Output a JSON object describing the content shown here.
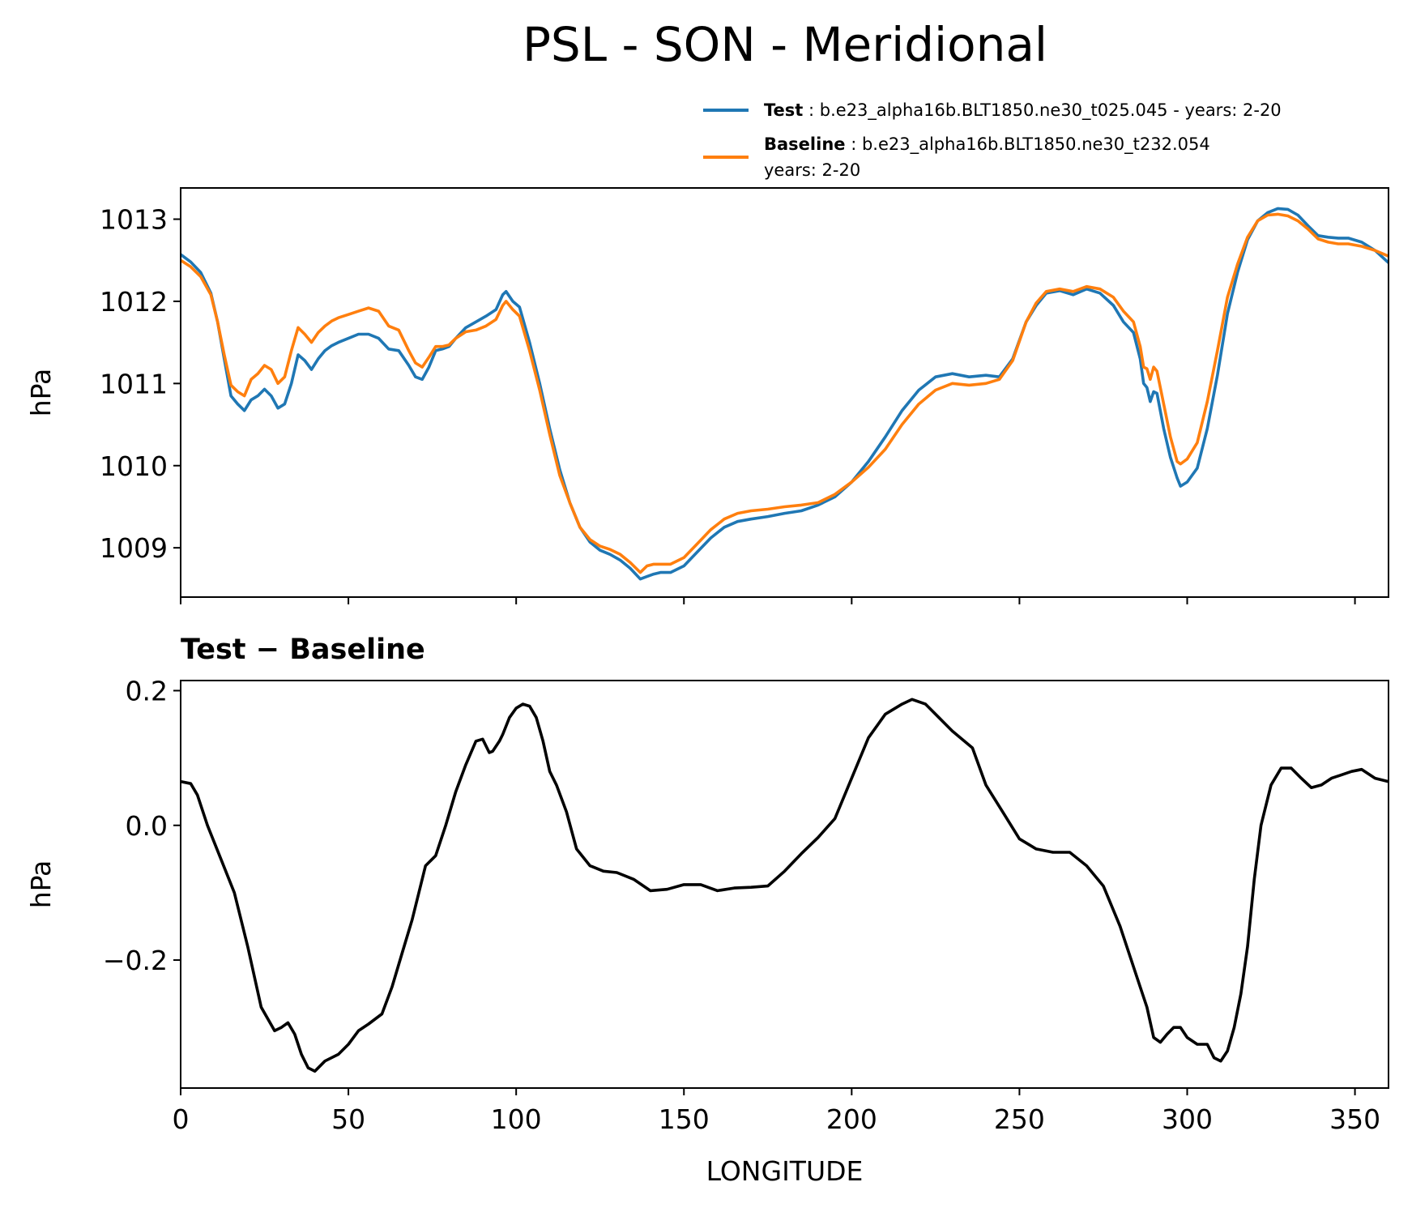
{
  "figure_title": "PSL - SON - Meridional",
  "chart_data": [
    {
      "type": "line",
      "ylabel": "hPa",
      "xlabel": "",
      "xlim": [
        0,
        360
      ],
      "ylim": [
        1008.4,
        1013.38
      ],
      "yticks": [
        1009,
        1010,
        1011,
        1012,
        1013
      ],
      "ytick_labels": [
        "1009",
        "1010",
        "1011",
        "1012",
        "1013"
      ],
      "legend": {
        "position": "upper-right-outside",
        "entries": [
          {
            "name": "Test",
            "sep": " : ",
            "text": "b.e23_alpha16b.BLT1850.ne30_t025.045 - years: 2-20",
            "text2": ""
          },
          {
            "name": "Baseline",
            "sep": " : ",
            "text": "b.e23_alpha16b.BLT1850.ne30_t232.054",
            "text2": "years: 2-20"
          }
        ]
      },
      "series": [
        {
          "name": "Test",
          "color": "#1f77b4",
          "x": [
            0,
            3,
            6,
            9,
            11,
            13,
            15,
            17,
            19,
            21,
            23,
            25,
            27,
            29,
            31,
            33,
            35,
            37,
            39,
            41,
            43,
            45,
            47,
            50,
            53,
            56,
            59,
            62,
            65,
            68,
            70,
            72,
            74,
            76,
            78,
            80,
            82,
            85,
            88,
            91,
            94,
            96,
            97,
            99,
            101,
            104,
            107,
            110,
            113,
            116,
            119,
            122,
            125,
            128,
            131,
            134,
            137,
            139,
            141,
            143,
            146,
            150,
            154,
            158,
            162,
            166,
            170,
            175,
            180,
            185,
            190,
            195,
            200,
            205,
            210,
            215,
            220,
            225,
            230,
            235,
            240,
            244,
            248,
            252,
            255,
            258,
            262,
            266,
            270,
            274,
            278,
            281,
            284,
            286,
            287,
            288,
            289,
            290,
            291,
            293,
            295,
            297,
            298,
            300,
            303,
            306,
            309,
            312,
            315,
            318,
            321,
            324,
            327,
            330,
            333,
            336,
            339,
            342,
            345,
            348,
            352,
            356,
            360
          ],
          "values": [
            1012.57,
            1012.48,
            1012.35,
            1012.1,
            1011.75,
            1011.3,
            1010.85,
            1010.75,
            1010.67,
            1010.8,
            1010.85,
            1010.93,
            1010.85,
            1010.7,
            1010.75,
            1011.0,
            1011.35,
            1011.28,
            1011.17,
            1011.3,
            1011.4,
            1011.46,
            1011.5,
            1011.55,
            1011.6,
            1011.6,
            1011.55,
            1011.42,
            1011.4,
            1011.22,
            1011.08,
            1011.05,
            1011.2,
            1011.4,
            1011.42,
            1011.45,
            1011.55,
            1011.68,
            1011.75,
            1011.82,
            1011.9,
            1012.08,
            1012.12,
            1012.0,
            1011.93,
            1011.5,
            1011.0,
            1010.45,
            1009.95,
            1009.55,
            1009.25,
            1009.07,
            1008.97,
            1008.92,
            1008.85,
            1008.75,
            1008.62,
            1008.65,
            1008.68,
            1008.7,
            1008.7,
            1008.78,
            1008.95,
            1009.12,
            1009.25,
            1009.32,
            1009.35,
            1009.38,
            1009.42,
            1009.45,
            1009.52,
            1009.62,
            1009.8,
            1010.05,
            1010.35,
            1010.67,
            1010.92,
            1011.08,
            1011.12,
            1011.08,
            1011.1,
            1011.08,
            1011.3,
            1011.75,
            1011.95,
            1012.1,
            1012.13,
            1012.08,
            1012.15,
            1012.1,
            1011.95,
            1011.75,
            1011.62,
            1011.3,
            1011.0,
            1010.95,
            1010.78,
            1010.9,
            1010.88,
            1010.45,
            1010.1,
            1009.85,
            1009.75,
            1009.8,
            1009.97,
            1010.45,
            1011.1,
            1011.85,
            1012.35,
            1012.75,
            1012.98,
            1013.08,
            1013.13,
            1013.12,
            1013.05,
            1012.92,
            1012.8,
            1012.78,
            1012.77,
            1012.77,
            1012.72,
            1012.62,
            1012.47
          ]
        },
        {
          "name": "Baseline",
          "color": "#ff7f0e",
          "x": [
            0,
            3,
            6,
            9,
            11,
            13,
            15,
            17,
            19,
            21,
            23,
            25,
            27,
            29,
            31,
            33,
            35,
            37,
            39,
            41,
            43,
            45,
            47,
            50,
            53,
            56,
            59,
            62,
            65,
            68,
            70,
            72,
            74,
            76,
            78,
            80,
            82,
            85,
            88,
            91,
            94,
            96,
            97,
            99,
            101,
            104,
            107,
            110,
            113,
            116,
            119,
            122,
            125,
            128,
            131,
            134,
            137,
            139,
            141,
            143,
            146,
            150,
            154,
            158,
            162,
            166,
            170,
            175,
            180,
            185,
            190,
            195,
            200,
            205,
            210,
            215,
            220,
            225,
            230,
            235,
            240,
            244,
            248,
            252,
            255,
            258,
            262,
            266,
            270,
            274,
            278,
            281,
            284,
            286,
            287,
            288,
            289,
            290,
            291,
            293,
            295,
            297,
            298,
            300,
            303,
            306,
            309,
            312,
            315,
            318,
            321,
            324,
            327,
            330,
            333,
            336,
            339,
            342,
            345,
            348,
            352,
            356,
            360
          ],
          "values": [
            1012.5,
            1012.42,
            1012.3,
            1012.08,
            1011.75,
            1011.35,
            1010.98,
            1010.9,
            1010.85,
            1011.05,
            1011.12,
            1011.22,
            1011.17,
            1011.0,
            1011.08,
            1011.4,
            1011.68,
            1011.6,
            1011.5,
            1011.62,
            1011.7,
            1011.76,
            1011.8,
            1011.84,
            1011.88,
            1011.92,
            1011.88,
            1011.7,
            1011.65,
            1011.4,
            1011.25,
            1011.2,
            1011.32,
            1011.45,
            1011.45,
            1011.47,
            1011.55,
            1011.63,
            1011.65,
            1011.7,
            1011.78,
            1011.95,
            1012.0,
            1011.9,
            1011.82,
            1011.4,
            1010.92,
            1010.38,
            1009.88,
            1009.55,
            1009.25,
            1009.1,
            1009.02,
            1008.98,
            1008.92,
            1008.82,
            1008.7,
            1008.78,
            1008.8,
            1008.8,
            1008.8,
            1008.88,
            1009.05,
            1009.22,
            1009.35,
            1009.42,
            1009.45,
            1009.47,
            1009.5,
            1009.52,
            1009.55,
            1009.65,
            1009.8,
            1009.98,
            1010.2,
            1010.5,
            1010.75,
            1010.92,
            1011.0,
            1010.98,
            1011.0,
            1011.05,
            1011.28,
            1011.75,
            1011.98,
            1012.12,
            1012.15,
            1012.12,
            1012.18,
            1012.15,
            1012.05,
            1011.88,
            1011.75,
            1011.45,
            1011.2,
            1011.18,
            1011.05,
            1011.2,
            1011.15,
            1010.75,
            1010.35,
            1010.05,
            1010.02,
            1010.08,
            1010.28,
            1010.78,
            1011.4,
            1012.05,
            1012.45,
            1012.78,
            1012.98,
            1013.05,
            1013.06,
            1013.04,
            1012.98,
            1012.88,
            1012.76,
            1012.72,
            1012.7,
            1012.7,
            1012.67,
            1012.62,
            1012.55
          ]
        }
      ]
    },
    {
      "type": "line",
      "title": "Test − Baseline",
      "ylabel": "hPa",
      "xlabel": "LONGITUDE",
      "xlim": [
        0,
        360
      ],
      "ylim": [
        -0.39,
        0.215
      ],
      "yticks": [
        -0.2,
        0.0,
        0.2
      ],
      "ytick_labels": [
        "−0.2",
        "0.0",
        "0.2"
      ],
      "xticks": [
        0,
        50,
        100,
        150,
        200,
        250,
        300,
        350
      ],
      "xtick_labels": [
        "0",
        "50",
        "100",
        "150",
        "200",
        "250",
        "300",
        "350"
      ],
      "series": [
        {
          "name": "Test − Baseline",
          "color": "#000000",
          "x": [
            0,
            3,
            5,
            8,
            12,
            16,
            20,
            24,
            28,
            30,
            32,
            34,
            36,
            38,
            40,
            43,
            47,
            50,
            53,
            56,
            60,
            63,
            66,
            69,
            73,
            76,
            79,
            82,
            85,
            88,
            90,
            92,
            93,
            95,
            96,
            98,
            100,
            102,
            104,
            106,
            108,
            110,
            112,
            115,
            118,
            122,
            126,
            130,
            135,
            140,
            145,
            150,
            155,
            160,
            165,
            170,
            175,
            180,
            185,
            190,
            195,
            200,
            205,
            210,
            215,
            218,
            222,
            226,
            230,
            236,
            240,
            245,
            250,
            255,
            260,
            265,
            270,
            275,
            280,
            284,
            286,
            288,
            290,
            292,
            294,
            296,
            298,
            300,
            303,
            306,
            308,
            310,
            312,
            314,
            316,
            318,
            320,
            322,
            325,
            328,
            331,
            334,
            337,
            340,
            343,
            346,
            349,
            352,
            356,
            360
          ],
          "values": [
            0.065,
            0.062,
            0.045,
            0.0,
            -0.05,
            -0.1,
            -0.18,
            -0.27,
            -0.305,
            -0.3,
            -0.293,
            -0.31,
            -0.34,
            -0.36,
            -0.365,
            -0.35,
            -0.34,
            -0.325,
            -0.305,
            -0.295,
            -0.28,
            -0.24,
            -0.19,
            -0.14,
            -0.06,
            -0.045,
            0.0,
            0.05,
            0.09,
            0.125,
            0.128,
            0.108,
            0.11,
            0.125,
            0.135,
            0.16,
            0.174,
            0.18,
            0.177,
            0.16,
            0.125,
            0.08,
            0.06,
            0.02,
            -0.035,
            -0.06,
            -0.068,
            -0.07,
            -0.08,
            -0.097,
            -0.095,
            -0.088,
            -0.088,
            -0.097,
            -0.093,
            -0.092,
            -0.09,
            -0.068,
            -0.042,
            -0.018,
            0.01,
            0.07,
            0.13,
            0.165,
            0.18,
            0.187,
            0.18,
            0.16,
            0.14,
            0.115,
            0.06,
            0.02,
            -0.02,
            -0.035,
            -0.04,
            -0.04,
            -0.06,
            -0.09,
            -0.15,
            -0.21,
            -0.24,
            -0.27,
            -0.315,
            -0.322,
            -0.31,
            -0.3,
            -0.3,
            -0.315,
            -0.325,
            -0.325,
            -0.345,
            -0.35,
            -0.335,
            -0.3,
            -0.25,
            -0.18,
            -0.08,
            0.0,
            0.06,
            0.085,
            0.085,
            0.07,
            0.056,
            0.06,
            0.07,
            0.075,
            0.08,
            0.083,
            0.07,
            0.065
          ]
        }
      ]
    }
  ]
}
